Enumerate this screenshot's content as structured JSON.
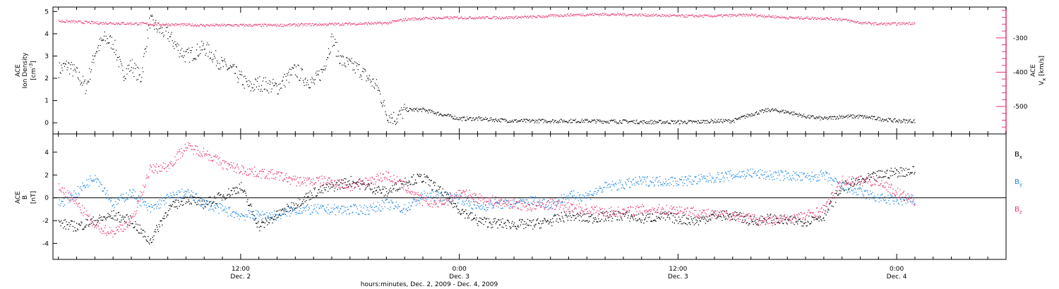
{
  "colors": {
    "density": "#000000",
    "vx": "#e8336a",
    "bx": "#000000",
    "by": "#1e88e5",
    "bz": "#e8336a",
    "axes": "#000000"
  },
  "bottom_axis": {
    "title": "hours:minutes, Dec.  2, 2009 - Dec.  4, 2009",
    "ticks": [
      {
        "time": "12:00",
        "date": "Dec. 2",
        "hours": 12
      },
      {
        "time": "0:00",
        "date": "Dec. 3",
        "hours": 24
      },
      {
        "time": "12:00",
        "date": "Dec. 3",
        "hours": 36
      },
      {
        "time": "0:00",
        "date": "Dec. 4",
        "hours": 48
      }
    ]
  },
  "chart_data": [
    {
      "type": "scatter",
      "panel": "top",
      "xlim": [
        1.7,
        54.0
      ],
      "xlabel_unit": "hours since Dec. 2 0:00",
      "left_axis": {
        "label_line1": "ACE",
        "label_line2": "Ion Density",
        "label_line3": "[cm",
        "label_exp": "-3",
        "label_close": "]",
        "ylim": [
          -0.5,
          5.2
        ],
        "tick_values": [
          0,
          1,
          2,
          3,
          4,
          5
        ],
        "tick_labels": [
          "0",
          "1",
          "2",
          "3",
          "4",
          "5"
        ]
      },
      "right_axis": {
        "label_main": "V",
        "label_sub": "x",
        "label_ace": "ACE",
        "label_unit": "[km/s]",
        "ylim": [
          -580,
          -210
        ],
        "tick_values": [
          -300,
          -400,
          -500
        ],
        "tick_labels": [
          "-300",
          "-400",
          "-500"
        ]
      },
      "series": [
        {
          "key": "density",
          "axis": "left",
          "x": [
            2.0,
            2.5,
            3.0,
            3.5,
            4.0,
            4.5,
            5.0,
            5.5,
            6.0,
            6.5,
            7.0,
            7.5,
            8.0,
            8.5,
            9.0,
            9.5,
            10.0,
            10.5,
            11.0,
            11.5,
            12.0,
            12.5,
            13.0,
            13.5,
            14.0,
            14.5,
            15.0,
            15.5,
            16.0,
            16.5,
            17.0,
            17.5,
            18.0,
            18.5,
            19.0,
            19.5,
            20.0,
            20.5,
            21.0,
            22.0,
            23.0,
            24.0,
            25.0,
            26.0,
            27.0,
            28.0,
            29.0,
            30.0,
            31.0,
            32.0,
            33.0,
            34.0,
            35.0,
            36.0,
            37.0,
            38.0,
            39.0,
            40.0,
            41.0,
            42.0,
            43.0,
            44.0,
            45.0,
            46.0,
            47.0,
            48.0,
            49.0
          ],
          "y": [
            2.4,
            2.6,
            2.2,
            1.6,
            3.2,
            3.8,
            3.6,
            2.2,
            2.6,
            2.0,
            4.6,
            4.2,
            4.0,
            3.4,
            3.0,
            3.2,
            3.4,
            3.0,
            2.6,
            2.4,
            2.0,
            1.6,
            1.8,
            1.7,
            1.6,
            2.0,
            2.4,
            2.0,
            1.8,
            2.4,
            3.8,
            2.8,
            2.6,
            2.4,
            2.0,
            1.6,
            0.4,
            0.2,
            0.6,
            0.6,
            0.4,
            0.2,
            0.2,
            0.15,
            0.1,
            0.1,
            0.1,
            0.1,
            0.1,
            0.08,
            0.08,
            0.05,
            0.05,
            0.05,
            0.05,
            0.1,
            0.1,
            0.4,
            0.6,
            0.5,
            0.3,
            0.2,
            0.3,
            0.3,
            0.2,
            0.1,
            0.1
          ]
        },
        {
          "key": "vx",
          "axis": "right",
          "x": [
            2.0,
            4.0,
            6.0,
            8.0,
            10.0,
            12.0,
            14.0,
            16.0,
            18.0,
            20.0,
            21.0,
            22.0,
            24.0,
            26.0,
            28.0,
            30.0,
            32.0,
            34.0,
            36.0,
            38.0,
            40.0,
            42.0,
            44.0,
            45.0,
            46.0,
            47.0,
            48.0,
            49.0
          ],
          "y": [
            -250,
            -255,
            -257,
            -260,
            -262,
            -262,
            -262,
            -260,
            -258,
            -256,
            -245,
            -242,
            -240,
            -240,
            -238,
            -232,
            -230,
            -232,
            -235,
            -235,
            -232,
            -240,
            -242,
            -245,
            -255,
            -258,
            -258,
            -255
          ]
        }
      ]
    },
    {
      "type": "scatter",
      "panel": "bottom",
      "xlim": [
        1.7,
        54.0
      ],
      "xlabel_unit": "hours since Dec. 2 0:00",
      "left_axis": {
        "label_line1": "ACE",
        "label_line2": "B",
        "label_line3": "[nT]",
        "ylim": [
          -5.4,
          5.6
        ],
        "tick_values": [
          -4,
          -2,
          0,
          2,
          4
        ],
        "tick_labels": [
          "-4",
          "-2",
          "0",
          "2",
          "4"
        ]
      },
      "legend": [
        {
          "key": "bx",
          "main": "B",
          "sub": "x"
        },
        {
          "key": "by",
          "main": "B",
          "sub": "y"
        },
        {
          "key": "bz",
          "main": "B",
          "sub": "z"
        }
      ],
      "series": [
        {
          "key": "bx",
          "x": [
            2.0,
            3.0,
            4.0,
            5.0,
            6.0,
            7.0,
            8.0,
            9.0,
            10.0,
            11.0,
            12.0,
            13.0,
            14.0,
            15.0,
            16.0,
            17.0,
            18.0,
            19.0,
            20.0,
            21.0,
            22.0,
            23.0,
            24.0,
            25.0,
            26.0,
            27.0,
            28.0,
            29.0,
            30.0,
            31.0,
            32.0,
            33.0,
            34.0,
            35.0,
            36.0,
            37.0,
            38.0,
            39.0,
            40.0,
            41.0,
            42.0,
            43.0,
            44.0,
            45.0,
            46.0,
            47.0,
            48.0,
            49.0
          ],
          "y": [
            -2.2,
            -2.5,
            -2.0,
            -1.5,
            -2.0,
            -3.8,
            -1.0,
            0.0,
            -0.5,
            0.2,
            1.0,
            -2.5,
            -1.5,
            -0.5,
            0.5,
            1.0,
            1.5,
            1.0,
            0.5,
            1.5,
            1.8,
            0.5,
            -1.0,
            -2.0,
            -2.2,
            -2.3,
            -2.3,
            -2.0,
            -1.5,
            -1.8,
            -1.6,
            -1.5,
            -1.8,
            -1.6,
            -1.8,
            -2.0,
            -1.5,
            -1.5,
            -2.0,
            -1.8,
            -2.0,
            -2.0,
            -1.5,
            1.0,
            1.5,
            2.0,
            2.3,
            2.4
          ]
        },
        {
          "key": "by",
          "x": [
            2.0,
            3.0,
            4.0,
            5.0,
            6.0,
            7.0,
            8.0,
            9.0,
            10.0,
            11.0,
            12.0,
            13.0,
            14.0,
            15.0,
            16.0,
            17.0,
            18.0,
            19.0,
            20.0,
            21.0,
            22.0,
            23.0,
            24.0,
            25.0,
            26.0,
            27.0,
            28.0,
            29.0,
            30.0,
            31.0,
            32.0,
            33.0,
            34.0,
            35.0,
            36.0,
            37.0,
            38.0,
            39.0,
            40.0,
            41.0,
            42.0,
            43.0,
            44.0,
            45.0,
            46.0,
            47.0,
            48.0,
            49.0
          ],
          "y": [
            -0.5,
            0.5,
            2.0,
            -0.5,
            0.5,
            -1.0,
            0.0,
            0.5,
            -0.5,
            -1.0,
            -1.5,
            -1.5,
            -1.5,
            -1.0,
            -1.0,
            -1.0,
            -1.0,
            -1.0,
            -0.5,
            -1.0,
            0.2,
            0.2,
            0.0,
            -0.8,
            -0.5,
            -0.5,
            -0.2,
            -0.5,
            0.2,
            0.2,
            1.0,
            1.2,
            1.5,
            1.5,
            1.5,
            1.6,
            1.8,
            2.0,
            2.2,
            2.0,
            2.0,
            1.8,
            2.0,
            1.0,
            0.5,
            0.0,
            -0.2,
            -0.2
          ]
        },
        {
          "key": "bz",
          "x": [
            2.0,
            3.0,
            4.0,
            5.0,
            6.0,
            7.0,
            8.0,
            9.0,
            10.0,
            11.0,
            12.0,
            13.0,
            14.0,
            15.0,
            16.0,
            17.0,
            18.0,
            19.0,
            20.0,
            21.0,
            22.0,
            23.0,
            24.0,
            25.0,
            26.0,
            27.0,
            28.0,
            29.0,
            30.0,
            31.0,
            32.0,
            33.0,
            34.0,
            35.0,
            36.0,
            37.0,
            38.0,
            39.0,
            40.0,
            41.0,
            42.0,
            43.0,
            44.0,
            45.0,
            46.0,
            47.0,
            48.0,
            49.0
          ],
          "y": [
            1.0,
            -0.5,
            -2.5,
            -3.0,
            -2.0,
            2.5,
            2.8,
            4.5,
            4.0,
            3.0,
            2.5,
            2.2,
            2.0,
            1.5,
            1.5,
            1.5,
            1.0,
            1.5,
            2.0,
            1.0,
            -0.3,
            -0.5,
            0.5,
            0.0,
            -0.3,
            -0.5,
            -0.8,
            -0.5,
            -0.8,
            -1.0,
            -1.2,
            -1.2,
            -1.0,
            -1.0,
            -1.0,
            -1.2,
            -1.5,
            -1.5,
            -1.8,
            -2.0,
            -1.8,
            -1.5,
            -1.0,
            1.5,
            1.5,
            1.5,
            0.5,
            -0.3
          ]
        }
      ]
    }
  ]
}
